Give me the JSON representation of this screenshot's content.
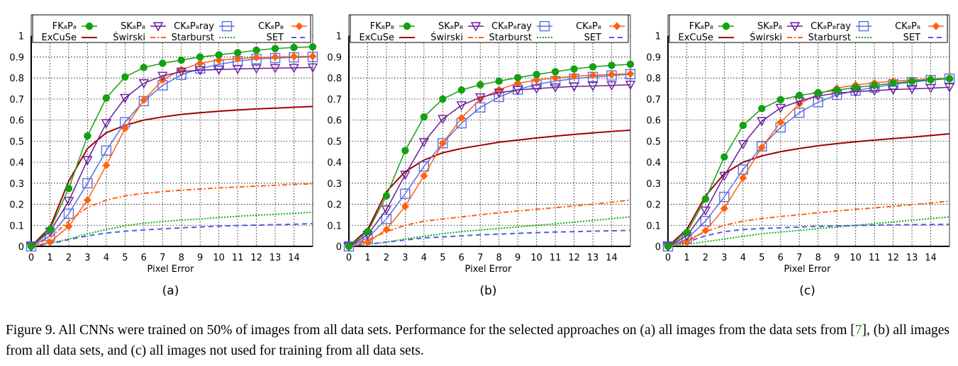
{
  "legend_entries": [
    {
      "name": "FK₈P₈",
      "color": "#13a013",
      "style": "solid",
      "marker": "circle-filled"
    },
    {
      "name": "SK₈P₈",
      "color": "#6a1b9a",
      "style": "solid",
      "marker": "triangle-down-open"
    },
    {
      "name": "CK₈P₈ray",
      "color": "#5a6ee0",
      "style": "solid",
      "marker": "square-open"
    },
    {
      "name": "CK₈P₈",
      "color": "#ff6010",
      "style": "solid",
      "marker": "diamond-filled"
    },
    {
      "name": "ExCuSe",
      "color": "#a00000",
      "style": "solid",
      "marker": "none"
    },
    {
      "name": "Świrski",
      "color": "#ff6010",
      "style": "dash-dot",
      "marker": "none"
    },
    {
      "name": "Starburst",
      "color": "#10b010",
      "style": "dotted",
      "marker": "none"
    },
    {
      "name": "SET",
      "color": "#5060e0",
      "style": "dashed",
      "marker": "none"
    }
  ],
  "chart_data": [
    {
      "type": "line",
      "panel_label": "(a)",
      "xlabel": "Pixel Error",
      "ylabel": "",
      "xlim": [
        0,
        15
      ],
      "ylim": [
        0,
        1.1
      ],
      "grid": true,
      "legend": "top",
      "xticks": [
        0,
        1,
        2,
        3,
        4,
        5,
        6,
        7,
        8,
        9,
        10,
        11,
        12,
        13,
        14
      ],
      "yticks": [
        0,
        0.1,
        0.2,
        0.3,
        0.4,
        0.5,
        0.6,
        0.7,
        0.8,
        0.9,
        1
      ],
      "x": [
        0,
        1,
        2,
        3,
        4,
        5,
        6,
        7,
        8,
        9,
        10,
        11,
        12,
        13,
        14,
        15
      ],
      "series": [
        {
          "name": "FK₈P₈",
          "values": [
            0,
            0.08,
            0.275,
            0.525,
            0.705,
            0.805,
            0.85,
            0.87,
            0.885,
            0.9,
            0.91,
            0.92,
            0.932,
            0.94,
            0.945,
            0.948
          ]
        },
        {
          "name": "SK₈P₈",
          "values": [
            0,
            0.07,
            0.215,
            0.41,
            0.585,
            0.705,
            0.775,
            0.81,
            0.83,
            0.837,
            0.84,
            0.843,
            0.845,
            0.847,
            0.848,
            0.85
          ]
        },
        {
          "name": "CK₈P₈ray",
          "values": [
            0,
            0.05,
            0.155,
            0.3,
            0.455,
            0.59,
            0.69,
            0.765,
            0.815,
            0.845,
            0.865,
            0.88,
            0.89,
            0.895,
            0.898,
            0.9
          ]
        },
        {
          "name": "CK₈P₈",
          "values": [
            0,
            0.02,
            0.095,
            0.22,
            0.385,
            0.56,
            0.695,
            0.79,
            0.84,
            0.87,
            0.885,
            0.892,
            0.897,
            0.9,
            0.902,
            0.903
          ]
        },
        {
          "name": "ExCuSe",
          "values": [
            0,
            0.09,
            0.31,
            0.465,
            0.54,
            0.575,
            0.6,
            0.615,
            0.627,
            0.635,
            0.642,
            0.648,
            0.653,
            0.657,
            0.661,
            0.665
          ]
        },
        {
          "name": "Świrski",
          "values": [
            0,
            0.04,
            0.12,
            0.185,
            0.22,
            0.24,
            0.252,
            0.26,
            0.267,
            0.272,
            0.278,
            0.282,
            0.286,
            0.29,
            0.294,
            0.298
          ]
        },
        {
          "name": "Starburst",
          "values": [
            0,
            0.015,
            0.035,
            0.06,
            0.08,
            0.098,
            0.11,
            0.118,
            0.125,
            0.13,
            0.137,
            0.143,
            0.148,
            0.152,
            0.157,
            0.162
          ]
        },
        {
          "name": "SET",
          "values": [
            0,
            0.012,
            0.032,
            0.05,
            0.063,
            0.072,
            0.078,
            0.083,
            0.088,
            0.092,
            0.096,
            0.099,
            0.101,
            0.103,
            0.105,
            0.108
          ]
        }
      ]
    },
    {
      "type": "line",
      "panel_label": "(b)",
      "xlabel": "Pixel Error",
      "ylabel": "",
      "xlim": [
        0,
        15
      ],
      "ylim": [
        0,
        1.1
      ],
      "grid": true,
      "legend": "top",
      "xticks": [
        0,
        1,
        2,
        3,
        4,
        5,
        6,
        7,
        8,
        9,
        10,
        11,
        12,
        13,
        14
      ],
      "yticks": [
        0,
        0.1,
        0.2,
        0.3,
        0.4,
        0.5,
        0.6,
        0.7,
        0.8,
        0.9,
        1
      ],
      "x": [
        0,
        1,
        2,
        3,
        4,
        5,
        6,
        7,
        8,
        9,
        10,
        11,
        12,
        13,
        14,
        15
      ],
      "series": [
        {
          "name": "FK₈P₈",
          "values": [
            0,
            0.07,
            0.24,
            0.455,
            0.615,
            0.7,
            0.743,
            0.768,
            0.785,
            0.802,
            0.817,
            0.83,
            0.843,
            0.853,
            0.86,
            0.865
          ]
        },
        {
          "name": "SK₈P₈",
          "values": [
            0,
            0.055,
            0.175,
            0.34,
            0.495,
            0.605,
            0.67,
            0.708,
            0.73,
            0.743,
            0.75,
            0.755,
            0.76,
            0.762,
            0.765,
            0.768
          ]
        },
        {
          "name": "CK₈P₈ray",
          "values": [
            0,
            0.04,
            0.13,
            0.25,
            0.38,
            0.49,
            0.585,
            0.66,
            0.71,
            0.745,
            0.77,
            0.785,
            0.797,
            0.805,
            0.812,
            0.818
          ]
        },
        {
          "name": "CK₈P₈",
          "values": [
            0,
            0.02,
            0.08,
            0.19,
            0.335,
            0.49,
            0.61,
            0.7,
            0.745,
            0.775,
            0.79,
            0.8,
            0.808,
            0.813,
            0.817,
            0.82
          ]
        },
        {
          "name": "ExCuSe",
          "values": [
            0,
            0.08,
            0.26,
            0.355,
            0.41,
            0.445,
            0.465,
            0.48,
            0.495,
            0.505,
            0.515,
            0.524,
            0.532,
            0.539,
            0.546,
            0.552
          ]
        },
        {
          "name": "Świrski",
          "values": [
            0,
            0.03,
            0.07,
            0.1,
            0.12,
            0.13,
            0.14,
            0.15,
            0.16,
            0.168,
            0.176,
            0.184,
            0.192,
            0.2,
            0.21,
            0.22
          ]
        },
        {
          "name": "Starburst",
          "values": [
            0,
            0.01,
            0.02,
            0.035,
            0.048,
            0.06,
            0.07,
            0.078,
            0.085,
            0.093,
            0.1,
            0.107,
            0.115,
            0.123,
            0.132,
            0.14
          ]
        },
        {
          "name": "SET",
          "values": [
            0,
            0.01,
            0.02,
            0.03,
            0.04,
            0.045,
            0.05,
            0.055,
            0.058,
            0.062,
            0.065,
            0.068,
            0.07,
            0.072,
            0.074,
            0.076
          ]
        }
      ]
    },
    {
      "type": "line",
      "panel_label": "(c)",
      "xlabel": "Pixel Error",
      "ylabel": "",
      "xlim": [
        0,
        15
      ],
      "ylim": [
        0,
        1.1
      ],
      "grid": true,
      "legend": "top",
      "xticks": [
        0,
        1,
        2,
        3,
        4,
        5,
        6,
        7,
        8,
        9,
        10,
        11,
        12,
        13,
        14
      ],
      "yticks": [
        0,
        0.1,
        0.2,
        0.3,
        0.4,
        0.5,
        0.6,
        0.7,
        0.8,
        0.9,
        1
      ],
      "x": [
        0,
        1,
        2,
        3,
        4,
        5,
        6,
        7,
        8,
        9,
        10,
        11,
        12,
        13,
        14,
        15
      ],
      "series": [
        {
          "name": "FK₈P₈",
          "values": [
            0,
            0.065,
            0.225,
            0.425,
            0.575,
            0.655,
            0.697,
            0.717,
            0.73,
            0.742,
            0.755,
            0.765,
            0.775,
            0.785,
            0.792,
            0.797
          ]
        },
        {
          "name": "SK₈P₈",
          "values": [
            0,
            0.05,
            0.17,
            0.335,
            0.485,
            0.595,
            0.658,
            0.69,
            0.715,
            0.728,
            0.735,
            0.74,
            0.745,
            0.748,
            0.752,
            0.756
          ]
        },
        {
          "name": "CK₈P₈ray",
          "values": [
            0,
            0.035,
            0.12,
            0.235,
            0.365,
            0.475,
            0.565,
            0.635,
            0.685,
            0.72,
            0.74,
            0.755,
            0.77,
            0.78,
            0.79,
            0.797
          ]
        },
        {
          "name": "CK₈P₈",
          "values": [
            0,
            0.02,
            0.075,
            0.18,
            0.325,
            0.47,
            0.59,
            0.677,
            0.724,
            0.752,
            0.767,
            0.777,
            0.785,
            0.79,
            0.795,
            0.798
          ]
        },
        {
          "name": "ExCuSe",
          "values": [
            0,
            0.08,
            0.24,
            0.345,
            0.4,
            0.43,
            0.45,
            0.465,
            0.478,
            0.488,
            0.497,
            0.505,
            0.512,
            0.519,
            0.527,
            0.535
          ]
        },
        {
          "name": "Świrski",
          "values": [
            0,
            0.03,
            0.07,
            0.1,
            0.12,
            0.132,
            0.142,
            0.15,
            0.16,
            0.168,
            0.176,
            0.183,
            0.19,
            0.198,
            0.206,
            0.215
          ]
        },
        {
          "name": "Starburst",
          "values": [
            0,
            0.01,
            0.022,
            0.035,
            0.048,
            0.06,
            0.068,
            0.076,
            0.084,
            0.092,
            0.1,
            0.108,
            0.116,
            0.124,
            0.132,
            0.14
          ]
        },
        {
          "name": "SET",
          "values": [
            0,
            0.02,
            0.05,
            0.07,
            0.08,
            0.085,
            0.088,
            0.092,
            0.095,
            0.097,
            0.099,
            0.101,
            0.102,
            0.103,
            0.104,
            0.105
          ]
        }
      ]
    }
  ],
  "caption": {
    "part1": "Figure 9.  All CNNs were trained on 50% of images from all data sets. Performance for the selected approaches on (a) all images from the data sets from [",
    "cite": "7",
    "part2": "], (b) all images from all data sets, and (c) all images not used for training from all data sets."
  }
}
